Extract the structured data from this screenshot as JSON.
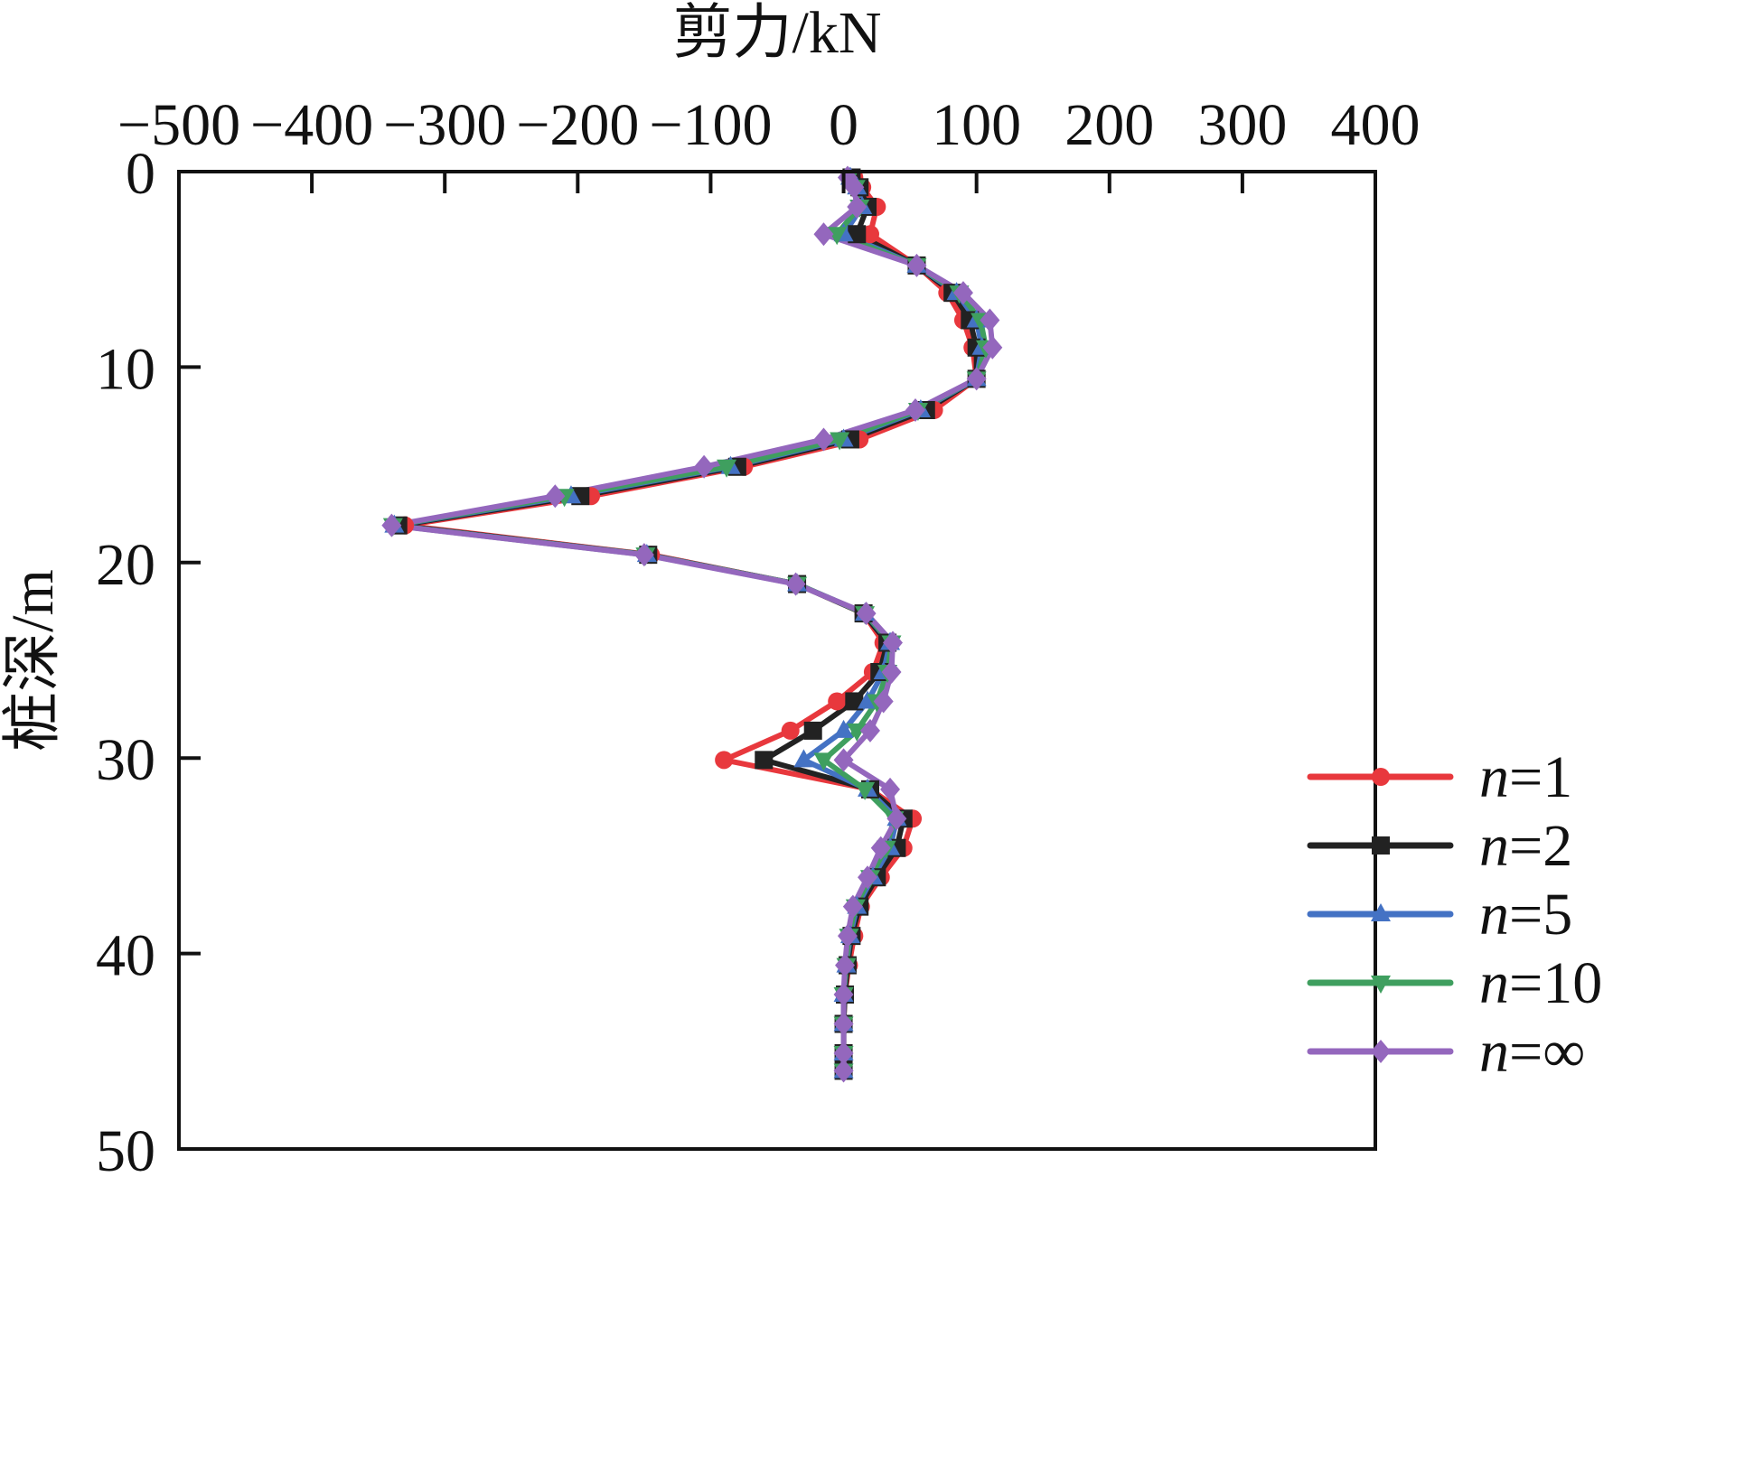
{
  "chart_data": {
    "type": "line",
    "xlabel": "剪力/kN",
    "ylabel": "桩深/m",
    "xlim": [
      -500,
      400
    ],
    "ylim": [
      0,
      50
    ],
    "y_inverted": true,
    "x_axis_position": "top",
    "x_ticks": [
      "−500",
      "−400",
      "−300",
      "−200",
      "−100",
      "0",
      "100",
      "200",
      "300",
      "400"
    ],
    "y_ticks": [
      "0",
      "10",
      "20",
      "30",
      "40",
      "50"
    ],
    "grid": false,
    "legend_position": "bottom-right",
    "series": [
      {
        "name_var": "n",
        "name_eq": "=",
        "name_val": "1",
        "color": "#e8383d",
        "marker": "circle",
        "points": [
          [
            8,
            0.3
          ],
          [
            14,
            0.8
          ],
          [
            25,
            1.8
          ],
          [
            20,
            3.2
          ],
          [
            55,
            4.8
          ],
          [
            78,
            6.2
          ],
          [
            90,
            7.6
          ],
          [
            97,
            9.0
          ],
          [
            100,
            10.6
          ],
          [
            68,
            12.2
          ],
          [
            12,
            13.7
          ],
          [
            -75,
            15.1
          ],
          [
            -190,
            16.6
          ],
          [
            -330,
            18.1
          ],
          [
            -145,
            19.6
          ],
          [
            -35,
            21.1
          ],
          [
            15,
            22.6
          ],
          [
            30,
            24.1
          ],
          [
            22,
            25.6
          ],
          [
            -5,
            27.1
          ],
          [
            -40,
            28.6
          ],
          [
            -90,
            30.1
          ],
          [
            20,
            31.6
          ],
          [
            52,
            33.1
          ],
          [
            45,
            34.6
          ],
          [
            28,
            36.1
          ],
          [
            13,
            37.6
          ],
          [
            8,
            39.1
          ],
          [
            4,
            40.6
          ],
          [
            1,
            42.1
          ],
          [
            0,
            43.6
          ],
          [
            0,
            45.1
          ],
          [
            0,
            46.0
          ]
        ]
      },
      {
        "name_var": "n",
        "name_eq": "=",
        "name_val": "2",
        "color": "#222222",
        "marker": "square",
        "points": [
          [
            6,
            0.3
          ],
          [
            12,
            0.8
          ],
          [
            18,
            1.8
          ],
          [
            10,
            3.2
          ],
          [
            55,
            4.8
          ],
          [
            82,
            6.2
          ],
          [
            95,
            7.6
          ],
          [
            100,
            9.0
          ],
          [
            100,
            10.6
          ],
          [
            62,
            12.2
          ],
          [
            5,
            13.7
          ],
          [
            -80,
            15.1
          ],
          [
            -198,
            16.6
          ],
          [
            -335,
            18.1
          ],
          [
            -147,
            19.6
          ],
          [
            -35,
            21.1
          ],
          [
            15,
            22.6
          ],
          [
            33,
            24.1
          ],
          [
            27,
            25.6
          ],
          [
            8,
            27.1
          ],
          [
            -23,
            28.6
          ],
          [
            -60,
            30.1
          ],
          [
            20,
            31.6
          ],
          [
            45,
            33.1
          ],
          [
            40,
            34.6
          ],
          [
            25,
            36.1
          ],
          [
            12,
            37.6
          ],
          [
            6,
            39.1
          ],
          [
            3,
            40.6
          ],
          [
            1,
            42.1
          ],
          [
            0,
            43.6
          ],
          [
            0,
            45.1
          ],
          [
            0,
            46.0
          ]
        ]
      },
      {
        "name_var": "n",
        "name_eq": "=",
        "name_val": "5",
        "color": "#4472c4",
        "marker": "triangle-up",
        "points": [
          [
            5,
            0.3
          ],
          [
            10,
            0.8
          ],
          [
            14,
            1.8
          ],
          [
            0,
            3.2
          ],
          [
            55,
            4.8
          ],
          [
            85,
            6.2
          ],
          [
            100,
            7.6
          ],
          [
            104,
            9.0
          ],
          [
            100,
            10.6
          ],
          [
            58,
            12.2
          ],
          [
            0,
            13.7
          ],
          [
            -85,
            15.1
          ],
          [
            -205,
            16.6
          ],
          [
            -338,
            18.1
          ],
          [
            -148,
            19.6
          ],
          [
            -35,
            21.1
          ],
          [
            16,
            22.6
          ],
          [
            35,
            24.1
          ],
          [
            30,
            25.6
          ],
          [
            18,
            27.1
          ],
          [
            0,
            28.6
          ],
          [
            -30,
            30.1
          ],
          [
            18,
            31.6
          ],
          [
            40,
            33.1
          ],
          [
            35,
            34.6
          ],
          [
            22,
            36.1
          ],
          [
            10,
            37.6
          ],
          [
            5,
            39.1
          ],
          [
            2,
            40.6
          ],
          [
            0,
            42.1
          ],
          [
            0,
            43.6
          ],
          [
            0,
            45.1
          ],
          [
            0,
            46.0
          ]
        ]
      },
      {
        "name_var": "n",
        "name_eq": "=",
        "name_val": "10",
        "color": "#3f9f5f",
        "marker": "triangle-down",
        "points": [
          [
            4,
            0.3
          ],
          [
            9,
            0.8
          ],
          [
            12,
            1.8
          ],
          [
            -5,
            3.2
          ],
          [
            55,
            4.8
          ],
          [
            87,
            6.2
          ],
          [
            103,
            7.6
          ],
          [
            107,
            9.0
          ],
          [
            100,
            10.6
          ],
          [
            56,
            12.2
          ],
          [
            -3,
            13.7
          ],
          [
            -88,
            15.1
          ],
          [
            -210,
            16.6
          ],
          [
            -339,
            18.1
          ],
          [
            -149,
            19.6
          ],
          [
            -35,
            21.1
          ],
          [
            16,
            22.6
          ],
          [
            36,
            24.1
          ],
          [
            33,
            25.6
          ],
          [
            25,
            27.1
          ],
          [
            10,
            28.6
          ],
          [
            -15,
            30.1
          ],
          [
            16,
            31.6
          ],
          [
            38,
            33.1
          ],
          [
            32,
            34.6
          ],
          [
            20,
            36.1
          ],
          [
            9,
            37.6
          ],
          [
            4,
            39.1
          ],
          [
            2,
            40.6
          ],
          [
            0,
            42.1
          ],
          [
            0,
            43.6
          ],
          [
            0,
            45.1
          ],
          [
            0,
            46.0
          ]
        ]
      },
      {
        "name_var": "n",
        "name_eq": "=",
        "name_val": "∞",
        "color": "#9467bd",
        "marker": "diamond",
        "points": [
          [
            3,
            0.3
          ],
          [
            8,
            0.8
          ],
          [
            10,
            1.8
          ],
          [
            -15,
            3.2
          ],
          [
            55,
            4.8
          ],
          [
            90,
            6.2
          ],
          [
            110,
            7.6
          ],
          [
            112,
            9.0
          ],
          [
            100,
            10.6
          ],
          [
            54,
            12.2
          ],
          [
            -15,
            13.7
          ],
          [
            -105,
            15.1
          ],
          [
            -217,
            16.6
          ],
          [
            -340,
            18.1
          ],
          [
            -150,
            19.6
          ],
          [
            -36,
            21.1
          ],
          [
            17,
            22.6
          ],
          [
            37,
            24.1
          ],
          [
            36,
            25.6
          ],
          [
            30,
            27.1
          ],
          [
            20,
            28.6
          ],
          [
            0,
            30.1
          ],
          [
            35,
            31.6
          ],
          [
            40,
            33.1
          ],
          [
            28,
            34.6
          ],
          [
            18,
            36.1
          ],
          [
            7,
            37.6
          ],
          [
            3,
            39.1
          ],
          [
            1,
            40.6
          ],
          [
            0,
            42.1
          ],
          [
            0,
            43.6
          ],
          [
            0,
            45.1
          ],
          [
            0,
            46.0
          ]
        ]
      }
    ]
  }
}
